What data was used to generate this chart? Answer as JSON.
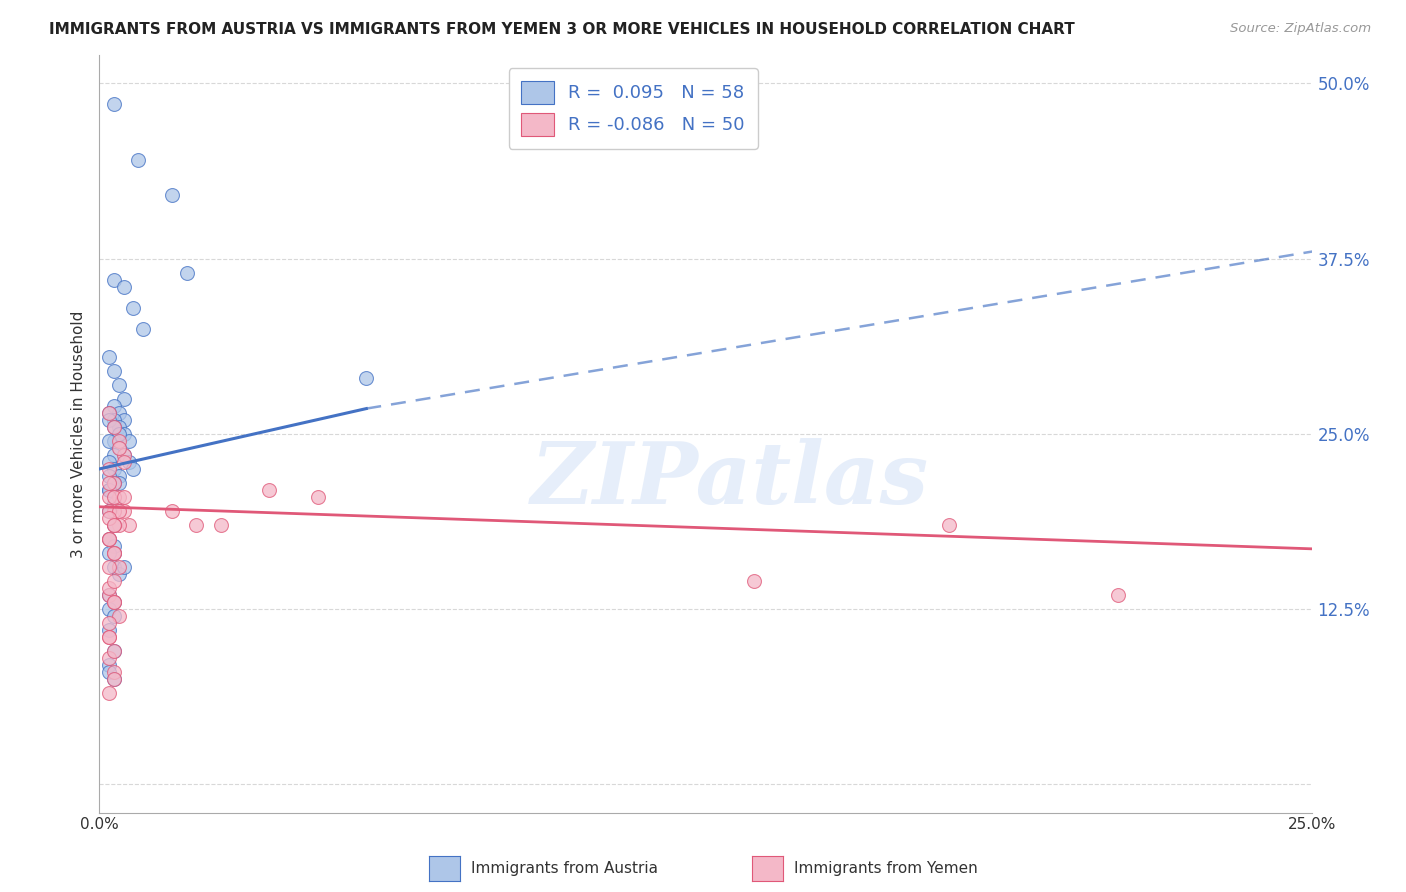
{
  "title": "IMMIGRANTS FROM AUSTRIA VS IMMIGRANTS FROM YEMEN 3 OR MORE VEHICLES IN HOUSEHOLD CORRELATION CHART",
  "source": "Source: ZipAtlas.com",
  "ylabel": "3 or more Vehicles in Household",
  "ytick_labels": [
    "",
    "12.5%",
    "25.0%",
    "37.5%",
    "50.0%"
  ],
  "ytick_values": [
    0.0,
    0.125,
    0.25,
    0.375,
    0.5
  ],
  "xlim": [
    0.0,
    0.25
  ],
  "ylim": [
    -0.02,
    0.52
  ],
  "austria_color": "#aec6e8",
  "austria_line_color": "#4472c4",
  "yemen_color": "#f4b8c8",
  "yemen_line_color": "#e05878",
  "austria_R": 0.095,
  "austria_N": 58,
  "yemen_R": -0.086,
  "yemen_N": 50,
  "legend_austria_label": "Immigrants from Austria",
  "legend_yemen_label": "Immigrants from Yemen",
  "austria_line_start_x": 0.0,
  "austria_line_start_y": 0.225,
  "austria_line_end_solid_x": 0.055,
  "austria_line_end_solid_y": 0.268,
  "austria_line_end_dashed_x": 0.25,
  "austria_line_end_dashed_y": 0.38,
  "yemen_line_start_x": 0.0,
  "yemen_line_start_y": 0.198,
  "yemen_line_end_x": 0.25,
  "yemen_line_end_y": 0.168,
  "austria_scatter_x": [
    0.003,
    0.008,
    0.015,
    0.018,
    0.003,
    0.005,
    0.007,
    0.009,
    0.002,
    0.003,
    0.004,
    0.005,
    0.003,
    0.004,
    0.005,
    0.002,
    0.003,
    0.004,
    0.005,
    0.006,
    0.003,
    0.004,
    0.005,
    0.006,
    0.007,
    0.002,
    0.003,
    0.004,
    0.002,
    0.003,
    0.002,
    0.003,
    0.004,
    0.002,
    0.003,
    0.004,
    0.002,
    0.003,
    0.002,
    0.003,
    0.002,
    0.003,
    0.002,
    0.003,
    0.002,
    0.003,
    0.004,
    0.005,
    0.002,
    0.003,
    0.002,
    0.003,
    0.002,
    0.003,
    0.002,
    0.055,
    0.002,
    0.003
  ],
  "austria_scatter_y": [
    0.485,
    0.445,
    0.42,
    0.365,
    0.36,
    0.355,
    0.34,
    0.325,
    0.305,
    0.295,
    0.285,
    0.275,
    0.27,
    0.265,
    0.26,
    0.265,
    0.26,
    0.255,
    0.25,
    0.245,
    0.245,
    0.24,
    0.235,
    0.23,
    0.225,
    0.26,
    0.255,
    0.25,
    0.245,
    0.235,
    0.23,
    0.225,
    0.22,
    0.21,
    0.2,
    0.215,
    0.195,
    0.185,
    0.175,
    0.165,
    0.22,
    0.215,
    0.21,
    0.17,
    0.165,
    0.155,
    0.15,
    0.155,
    0.135,
    0.13,
    0.125,
    0.12,
    0.11,
    0.095,
    0.085,
    0.29,
    0.08,
    0.075
  ],
  "yemen_scatter_x": [
    0.002,
    0.003,
    0.004,
    0.005,
    0.002,
    0.003,
    0.004,
    0.005,
    0.006,
    0.002,
    0.003,
    0.004,
    0.002,
    0.003,
    0.004,
    0.005,
    0.002,
    0.003,
    0.004,
    0.002,
    0.003,
    0.004,
    0.002,
    0.003,
    0.002,
    0.015,
    0.02,
    0.025,
    0.035,
    0.045,
    0.002,
    0.003,
    0.004,
    0.005,
    0.002,
    0.003,
    0.002,
    0.003,
    0.002,
    0.003,
    0.002,
    0.003,
    0.175,
    0.21,
    0.135,
    0.002,
    0.003,
    0.002,
    0.003,
    0.002
  ],
  "yemen_scatter_y": [
    0.265,
    0.255,
    0.245,
    0.235,
    0.225,
    0.215,
    0.205,
    0.195,
    0.185,
    0.205,
    0.195,
    0.185,
    0.195,
    0.185,
    0.24,
    0.23,
    0.175,
    0.165,
    0.155,
    0.135,
    0.13,
    0.12,
    0.14,
    0.13,
    0.115,
    0.195,
    0.185,
    0.185,
    0.21,
    0.205,
    0.215,
    0.205,
    0.195,
    0.205,
    0.19,
    0.185,
    0.175,
    0.165,
    0.09,
    0.08,
    0.105,
    0.095,
    0.185,
    0.135,
    0.145,
    0.155,
    0.145,
    0.065,
    0.075,
    0.105
  ],
  "watermark": "ZIPatlas",
  "background_color": "#ffffff",
  "grid_color": "#d8d8d8",
  "xtick_num": 10,
  "marker_size": 100
}
